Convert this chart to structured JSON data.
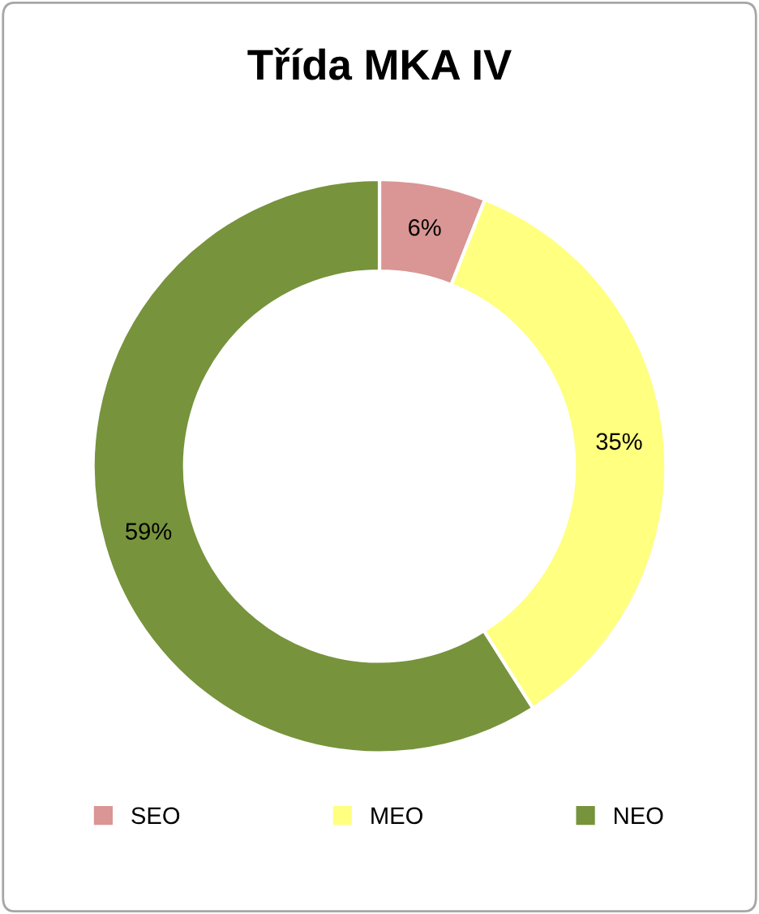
{
  "chart_data": {
    "type": "donut",
    "title": "Třída MKA IV",
    "categories": [
      "SEO",
      "MEO",
      "NEO"
    ],
    "values": [
      6,
      35,
      59
    ],
    "colors": [
      "#d99694",
      "#ffff80",
      "#77933c"
    ],
    "value_labels": [
      "6%",
      "35%",
      "59%"
    ],
    "legend": "bottom"
  }
}
